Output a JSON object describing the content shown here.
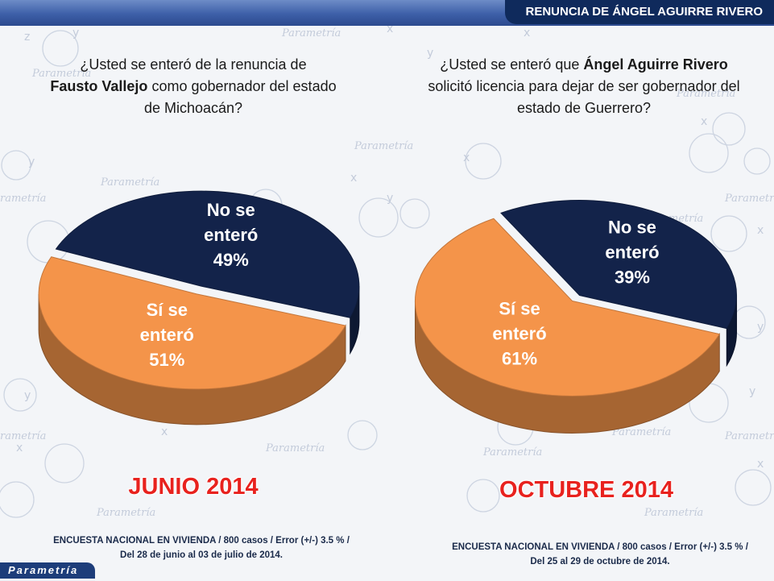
{
  "header": {
    "title": "RENUNCIA DE ÁNGEL AGUIRRE RIVERO"
  },
  "brand": {
    "name": "Parametría"
  },
  "chart_data": [
    {
      "type": "pie",
      "question": {
        "part1": "¿Usted se enteró de la renuncia de",
        "bold": "Fausto Vallejo",
        "part2": "como gobernador del estado de Michoacán?"
      },
      "period": "JUNIO 2014",
      "slices": [
        {
          "label_line1": "No se",
          "label_line2": "enteró",
          "value": 49,
          "value_label": "49%",
          "color": "#13234a"
        },
        {
          "label_line1": "Sí se",
          "label_line2": "enteró",
          "value": 51,
          "value_label": "51%",
          "color": "#f4944a"
        }
      ],
      "footnote": {
        "line1": "ENCUESTA  NACIONAL EN VIVIENDA / 800 casos / Error (+/-) 3.5 % /",
        "line2": "Del 28 de junio al 03 de julio de 2014."
      }
    },
    {
      "type": "pie",
      "question": {
        "part1": "¿Usted se enteró que",
        "bold": "Ángel Aguirre Rivero",
        "part2": "solicitó licencia para dejar de ser gobernador del estado de Guerrero?"
      },
      "period": "OCTUBRE 2014",
      "slices": [
        {
          "label_line1": "No se",
          "label_line2": "enteró",
          "value": 39,
          "value_label": "39%",
          "color": "#13234a"
        },
        {
          "label_line1": "Sí se",
          "label_line2": "enteró",
          "value": 61,
          "value_label": "61%",
          "color": "#f4944a"
        }
      ],
      "footnote": {
        "line1": "ENCUESTA  NACIONAL EN VIVIENDA / 800 casos / Error (+/-) 3.5 % /",
        "line2": "Del 25 al 29 de octubre de 2014."
      }
    }
  ]
}
